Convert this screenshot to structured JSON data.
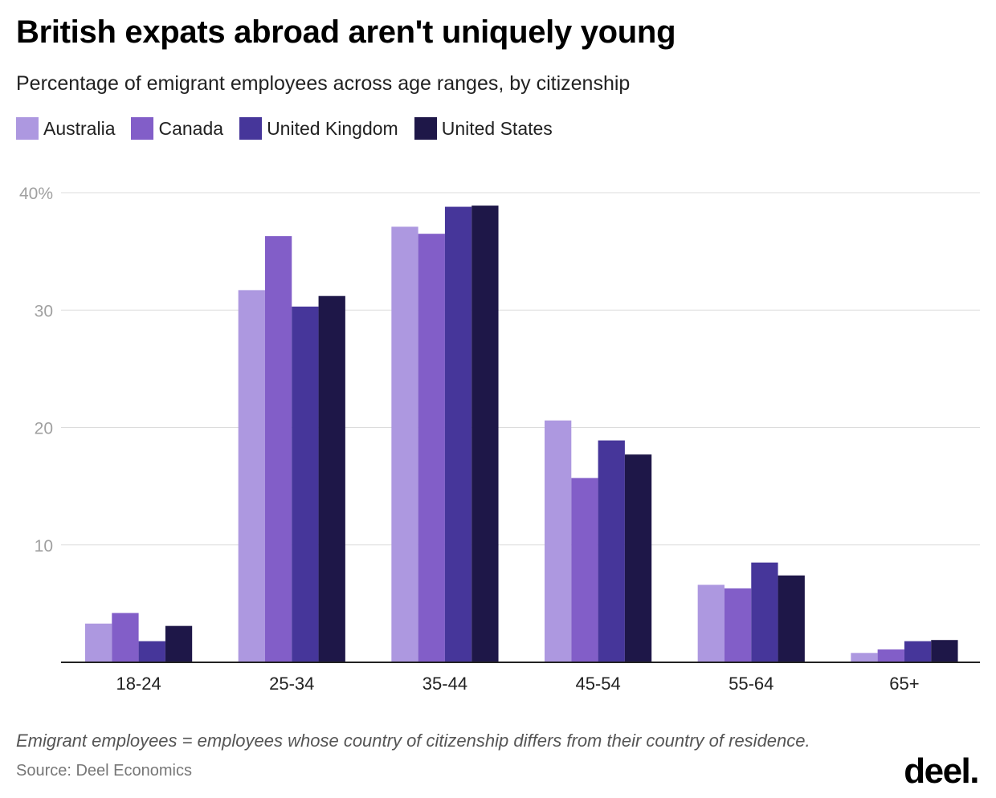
{
  "header": {
    "title": "British expats abroad aren't uniquely young",
    "subtitle": "Percentage of emigrant employees across age ranges, by citizenship"
  },
  "footer": {
    "note": "Emigrant employees = employees whose country of citizenship differs from their country of residence.",
    "source": "Source: Deel Economics",
    "logo": "deel."
  },
  "chart_data": {
    "type": "bar",
    "title": "British expats abroad aren't uniquely young",
    "subtitle": "Percentage of emigrant employees across age ranges, by citizenship",
    "categories": [
      "18-24",
      "25-34",
      "35-44",
      "45-54",
      "55-64",
      "65+"
    ],
    "series": [
      {
        "name": "Australia",
        "color": "#ad98e0",
        "values": [
          3.3,
          31.7,
          37.1,
          20.6,
          6.6,
          0.8
        ]
      },
      {
        "name": "Canada",
        "color": "#825ec8",
        "values": [
          4.2,
          36.3,
          36.5,
          15.7,
          6.3,
          1.1
        ]
      },
      {
        "name": "United Kingdom",
        "color": "#46369a",
        "values": [
          1.8,
          30.3,
          38.8,
          18.9,
          8.5,
          1.8
        ]
      },
      {
        "name": "United States",
        "color": "#1e1748",
        "values": [
          3.1,
          31.2,
          38.9,
          17.7,
          7.4,
          1.9
        ]
      }
    ],
    "ylim": [
      0,
      40
    ],
    "yticks": [
      10,
      20,
      30,
      40
    ],
    "ytick_labels": [
      "10",
      "20",
      "30",
      "40%"
    ],
    "grid": true,
    "legend": "top-left"
  }
}
